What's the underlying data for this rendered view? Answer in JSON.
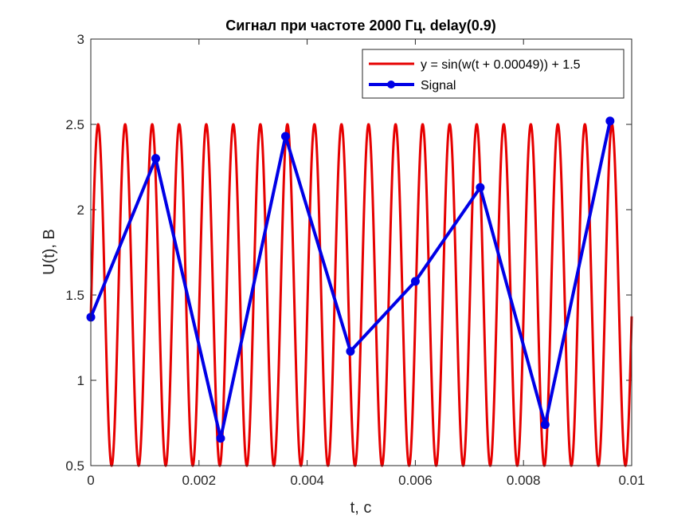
{
  "chart_data": {
    "type": "line",
    "title": "Сигнал при частоте 2000 Гц. delay(0.9)",
    "xlabel": "t, c",
    "ylabel": "U(t), B",
    "xlim": [
      0,
      0.01
    ],
    "ylim": [
      0.5,
      3
    ],
    "xticks": [
      "0",
      "0.002",
      "0.004",
      "0.006",
      "0.008",
      "0.01"
    ],
    "yticks": [
      "0.5",
      "1",
      "1.5",
      "2",
      "2.5",
      "3"
    ],
    "legend_position": "top-right",
    "grid": false,
    "series": [
      {
        "name": "y = sin(w(t + 0.00049)) + 1.5",
        "color": "#e60000",
        "function": {
          "amplitude": 1,
          "frequency_hz": 2000,
          "phase_shift_s": 0.00049,
          "offset": 1.5
        }
      },
      {
        "name": "Signal",
        "color": "#0000e6",
        "marker": "circle",
        "x": [
          0,
          0.0012,
          0.0024,
          0.0036,
          0.0048,
          0.006,
          0.0072,
          0.0084,
          0.0096
        ],
        "y": [
          1.37,
          2.3,
          0.66,
          2.43,
          1.17,
          1.58,
          2.13,
          0.74,
          2.52
        ]
      }
    ]
  }
}
